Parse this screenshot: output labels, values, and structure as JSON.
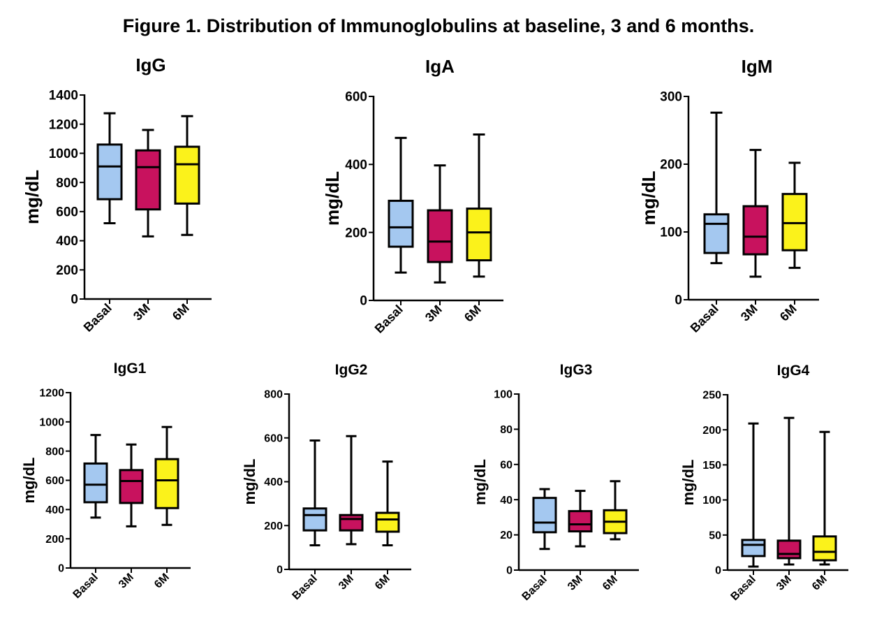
{
  "figure_title": "Figure 1. Distribution of Immunoglobulins at baseline, 3 and 6 months.",
  "colors": {
    "Basal": "#a4c8f0",
    "3M": "#c8125e",
    "6M": "#fbf21b",
    "stroke": "#000000"
  },
  "chart_data": [
    {
      "type": "boxplot",
      "title": "IgG",
      "ylabel": "mg/dL",
      "categories": [
        "Basal",
        "3M",
        "6M"
      ],
      "ylim": [
        0,
        1400
      ],
      "yticks": [
        "0",
        "200",
        "400",
        "600",
        "800",
        "1000",
        "1200",
        "1400"
      ],
      "boxes": [
        {
          "min": 520,
          "q1": 685,
          "median": 910,
          "q3": 1060,
          "max": 1275
        },
        {
          "min": 430,
          "q1": 615,
          "median": 905,
          "q3": 1020,
          "max": 1160
        },
        {
          "min": 440,
          "q1": 655,
          "median": 925,
          "q3": 1045,
          "max": 1255
        }
      ]
    },
    {
      "type": "boxplot",
      "title": "IgA",
      "ylabel": "mg/dL",
      "categories": [
        "Basal",
        "3M",
        "6M"
      ],
      "ylim": [
        0,
        600
      ],
      "yticks": [
        "0",
        "200",
        "400",
        "600"
      ],
      "boxes": [
        {
          "min": 82,
          "q1": 158,
          "median": 215,
          "q3": 293,
          "max": 478
        },
        {
          "min": 53,
          "q1": 113,
          "median": 173,
          "q3": 265,
          "max": 397
        },
        {
          "min": 70,
          "q1": 118,
          "median": 200,
          "q3": 270,
          "max": 488
        }
      ]
    },
    {
      "type": "boxplot",
      "title": "IgM",
      "ylabel": "mg/dL",
      "categories": [
        "Basal",
        "3M",
        "6M"
      ],
      "ylim": [
        0,
        300
      ],
      "yticks": [
        "0",
        "100",
        "200",
        "300"
      ],
      "boxes": [
        {
          "min": 54,
          "q1": 69,
          "median": 112,
          "q3": 126,
          "max": 276
        },
        {
          "min": 34,
          "q1": 67,
          "median": 93,
          "q3": 138,
          "max": 221
        },
        {
          "min": 47,
          "q1": 73,
          "median": 113,
          "q3": 156,
          "max": 202
        }
      ]
    },
    {
      "type": "boxplot",
      "title": "IgG1",
      "ylabel": "mg/dL",
      "categories": [
        "Basal",
        "3M",
        "6M"
      ],
      "ylim": [
        0,
        1200
      ],
      "yticks": [
        "0",
        "200",
        "400",
        "600",
        "800",
        "1000",
        "1200"
      ],
      "boxes": [
        {
          "min": 345,
          "q1": 450,
          "median": 570,
          "q3": 715,
          "max": 910
        },
        {
          "min": 285,
          "q1": 445,
          "median": 595,
          "q3": 670,
          "max": 845
        },
        {
          "min": 295,
          "q1": 410,
          "median": 600,
          "q3": 745,
          "max": 965
        }
      ]
    },
    {
      "type": "boxplot",
      "title": "IgG2",
      "ylabel": "mg/dL",
      "categories": [
        "Basal",
        "3M",
        "6M"
      ],
      "ylim": [
        0,
        800
      ],
      "yticks": [
        "0",
        "200",
        "400",
        "600",
        "800"
      ],
      "boxes": [
        {
          "min": 110,
          "q1": 178,
          "median": 248,
          "q3": 278,
          "max": 588
        },
        {
          "min": 115,
          "q1": 178,
          "median": 230,
          "q3": 248,
          "max": 608
        },
        {
          "min": 110,
          "q1": 172,
          "median": 228,
          "q3": 258,
          "max": 492
        }
      ]
    },
    {
      "type": "boxplot",
      "title": "IgG3",
      "ylabel": "mg/dL",
      "categories": [
        "Basal",
        "3M",
        "6M"
      ],
      "ylim": [
        0,
        100
      ],
      "yticks": [
        "0",
        "20",
        "40",
        "60",
        "80",
        "100"
      ],
      "boxes": [
        {
          "min": 12,
          "q1": 21.5,
          "median": 27,
          "q3": 41,
          "max": 46
        },
        {
          "min": 13.5,
          "q1": 22,
          "median": 26,
          "q3": 33.5,
          "max": 45
        },
        {
          "min": 17.5,
          "q1": 21,
          "median": 27.5,
          "q3": 34,
          "max": 50.5
        }
      ]
    },
    {
      "type": "boxplot",
      "title": "IgG4",
      "ylabel": "mg/dL",
      "categories": [
        "Basal",
        "3M",
        "6M"
      ],
      "ylim": [
        0,
        250
      ],
      "yticks": [
        "0",
        "50",
        "100",
        "150",
        "200",
        "250"
      ],
      "boxes": [
        {
          "min": 5,
          "q1": 20,
          "median": 36,
          "q3": 43,
          "max": 209
        },
        {
          "min": 8,
          "q1": 17,
          "median": 23,
          "q3": 42,
          "max": 217
        },
        {
          "min": 8,
          "q1": 14,
          "median": 26,
          "q3": 48,
          "max": 197
        }
      ]
    }
  ]
}
